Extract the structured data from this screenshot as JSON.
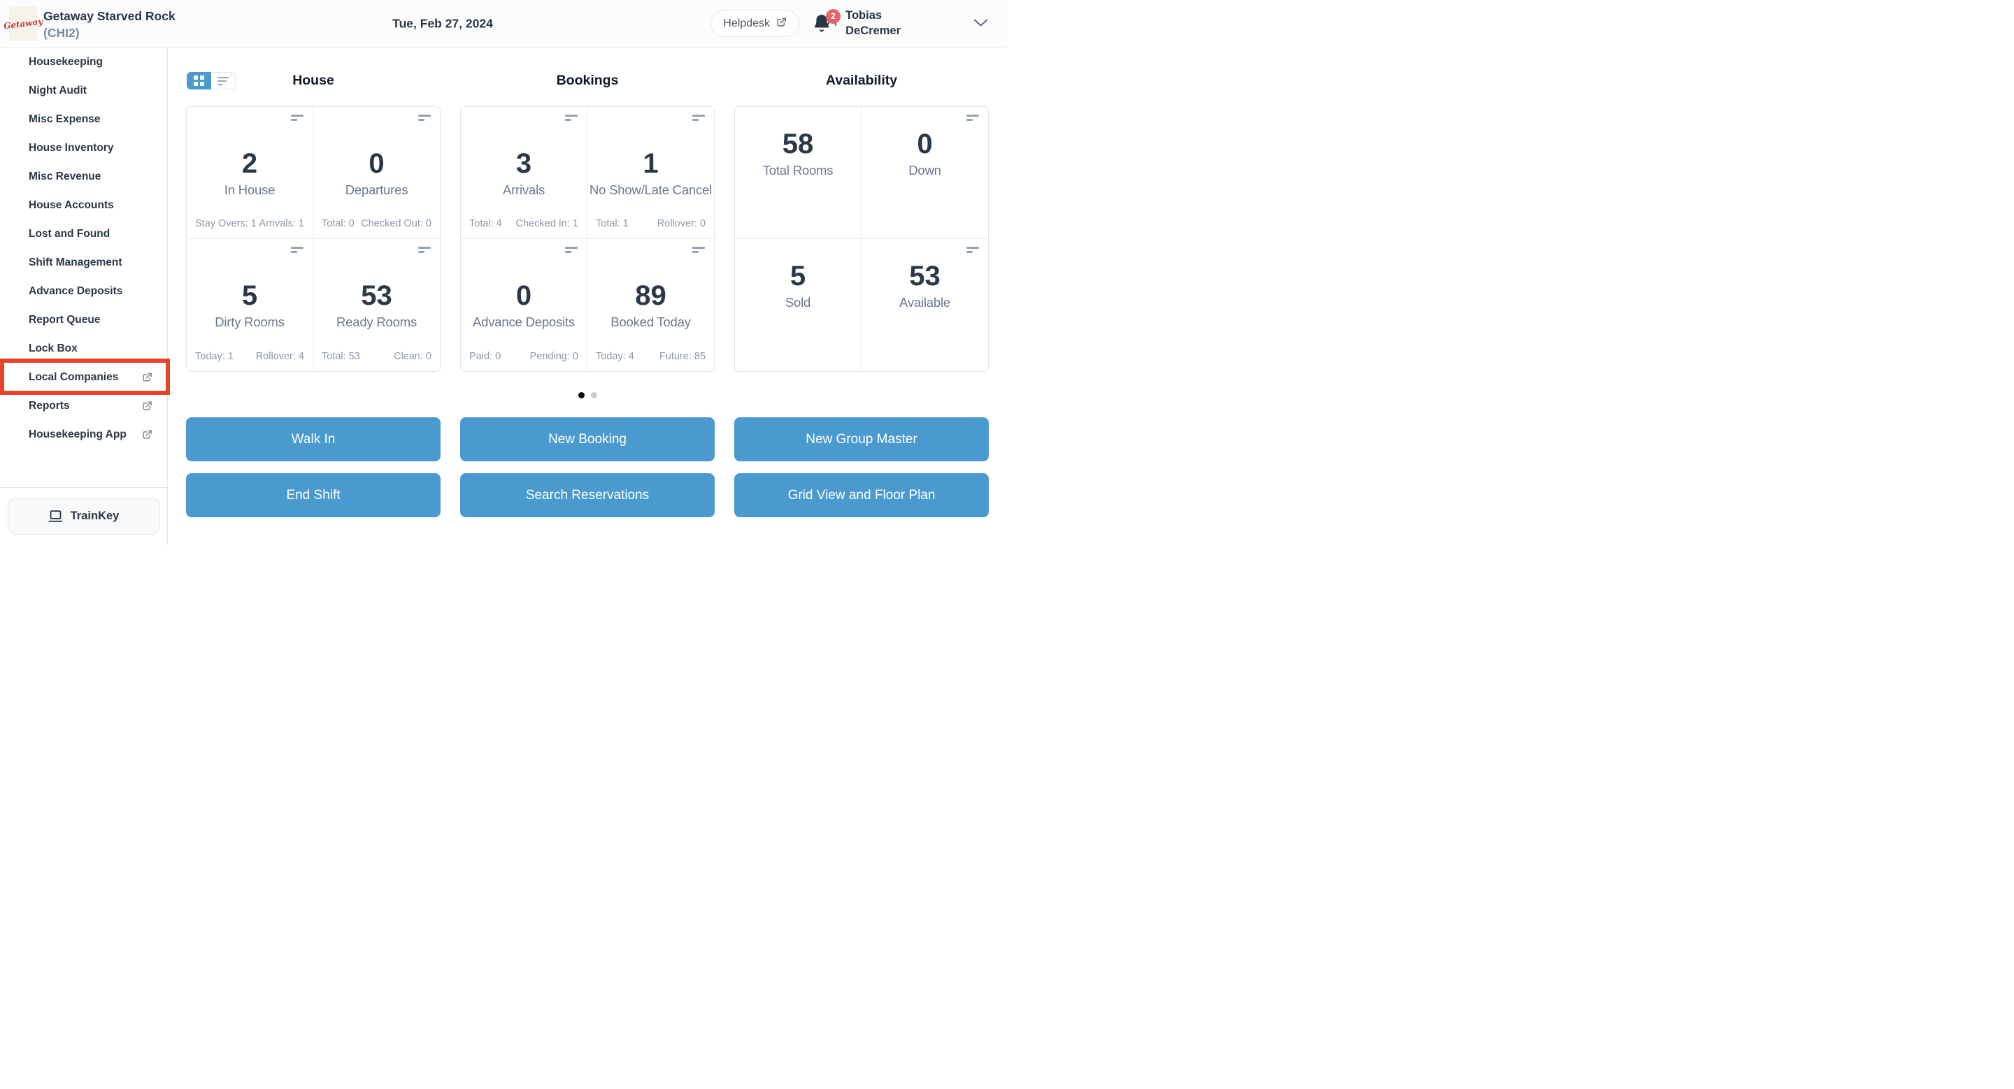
{
  "colors": {
    "accent_blue": "#4a9acf",
    "dark_navy": "#2b3744",
    "label_slate": "#69798b",
    "stats_gray": "#8b98a6",
    "annotation_red": "#e8432a",
    "badge_red": "#e2636c"
  },
  "header": {
    "logo_text": "Getaway",
    "property_name": "Getaway Starved Rock",
    "property_code": "(CHI2)",
    "date": "Tue, Feb 27, 2024",
    "helpdesk_label": "Helpdesk",
    "notification_count": "2",
    "user_first_name": "Tobias",
    "user_last_name": "DeCremer"
  },
  "sidebar": {
    "items": [
      {
        "label": "Housekeeping",
        "external": false,
        "highlighted": false
      },
      {
        "label": "Night Audit",
        "external": false,
        "highlighted": false
      },
      {
        "label": "Misc Expense",
        "external": false,
        "highlighted": false
      },
      {
        "label": "House Inventory",
        "external": false,
        "highlighted": false
      },
      {
        "label": "Misc Revenue",
        "external": false,
        "highlighted": false
      },
      {
        "label": "House Accounts",
        "external": false,
        "highlighted": false
      },
      {
        "label": "Lost and Found",
        "external": false,
        "highlighted": false
      },
      {
        "label": "Shift Management",
        "external": false,
        "highlighted": false
      },
      {
        "label": "Advance Deposits",
        "external": false,
        "highlighted": false
      },
      {
        "label": "Report Queue",
        "external": false,
        "highlighted": false
      },
      {
        "label": "Lock Box",
        "external": false,
        "highlighted": false
      },
      {
        "label": "Local Companies",
        "external": true,
        "highlighted": true
      },
      {
        "label": "Reports",
        "external": true,
        "highlighted": false
      },
      {
        "label": "Housekeeping App",
        "external": true,
        "highlighted": false
      }
    ],
    "trainkey_label": "TrainKey"
  },
  "view_toggle": {
    "active": "grid",
    "options": [
      "grid",
      "list"
    ]
  },
  "dashboard": {
    "sections": [
      {
        "title": "House",
        "cards": [
          {
            "value": "2",
            "label": "In House",
            "stats": [
              "Stay Overs: 1",
              "Arrivals: 1"
            ],
            "icon": true
          },
          {
            "value": "0",
            "label": "Departures",
            "stats": [
              "Total: 0",
              "Checked Out: 0"
            ],
            "icon": true
          },
          {
            "value": "5",
            "label": "Dirty Rooms",
            "stats": [
              "Today: 1",
              "Rollover: 4"
            ],
            "icon": true
          },
          {
            "value": "53",
            "label": "Ready Rooms",
            "stats": [
              "Total: 53",
              "Clean: 0"
            ],
            "icon": true
          }
        ],
        "actions": [
          "Walk In",
          "End Shift"
        ]
      },
      {
        "title": "Bookings",
        "cards": [
          {
            "value": "3",
            "label": "Arrivals",
            "stats": [
              "Total: 4",
              "Checked In: 1"
            ],
            "icon": true
          },
          {
            "value": "1",
            "label": "No Show/Late Cancel",
            "stats": [
              "Total: 1",
              "Rollover: 0"
            ],
            "icon": true
          },
          {
            "value": "0",
            "label": "Advance Deposits",
            "stats": [
              "Paid: 0",
              "Pending: 0"
            ],
            "icon": true
          },
          {
            "value": "89",
            "label": "Booked Today",
            "stats": [
              "Today: 4",
              "Future: 85"
            ],
            "icon": true
          }
        ],
        "actions": [
          "New Booking",
          "Search Reservations"
        ]
      },
      {
        "title": "Availability",
        "cards": [
          {
            "value": "58",
            "label": "Total Rooms",
            "stats": [],
            "icon": false
          },
          {
            "value": "0",
            "label": "Down",
            "stats": [],
            "icon": true
          },
          {
            "value": "5",
            "label": "Sold",
            "stats": [],
            "icon": false
          },
          {
            "value": "53",
            "label": "Available",
            "stats": [],
            "icon": true
          }
        ],
        "actions": [
          "New Group Master",
          "Grid View and Floor Plan"
        ]
      }
    ],
    "pagination": {
      "dot_count": 2,
      "active_index": 0
    }
  }
}
